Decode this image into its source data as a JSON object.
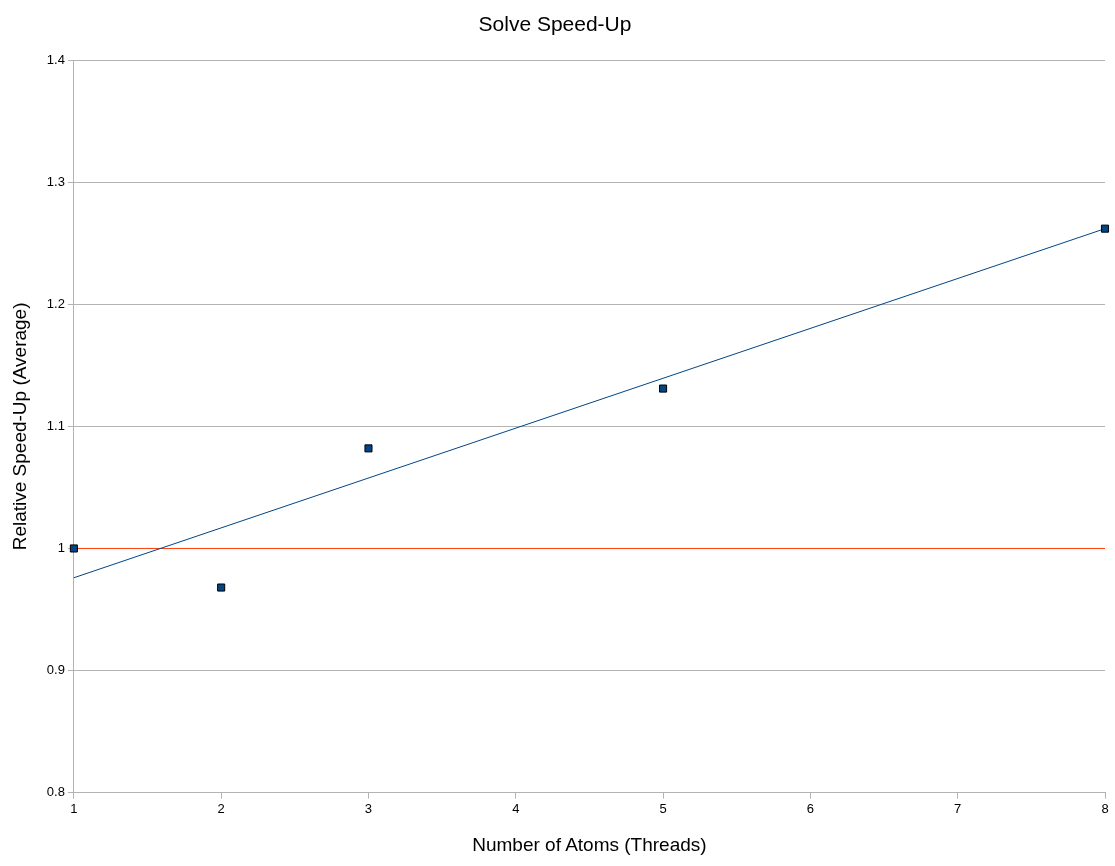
{
  "chart_data": {
    "type": "scatter",
    "title": "Solve Speed-Up",
    "xlabel": "Number of Atoms (Threads)",
    "ylabel": "Relative Speed-Up (Average)",
    "x": [
      1,
      2,
      3,
      5,
      8
    ],
    "series": [
      {
        "type": "scatter",
        "color": "#004586",
        "values": [
          1.0,
          0.968,
          1.082,
          1.131,
          1.262
        ],
        "marker": "square"
      },
      {
        "type": "line",
        "color": "#004586",
        "x": [
          1,
          8
        ],
        "values": [
          0.976,
          1.262
        ],
        "marker": "none"
      }
    ],
    "ref_lines": [
      {
        "axis": "y",
        "value": 1,
        "color": "#ff420e"
      }
    ],
    "xlim": [
      1,
      8
    ],
    "xticks": [
      1,
      2,
      3,
      4,
      5,
      6,
      7,
      8
    ],
    "ylim": [
      0.8,
      1.4
    ],
    "yticks": [
      0.8,
      0.9,
      1,
      1.1,
      1.2,
      1.3,
      1.4
    ],
    "grid": "y",
    "legend": false
  }
}
